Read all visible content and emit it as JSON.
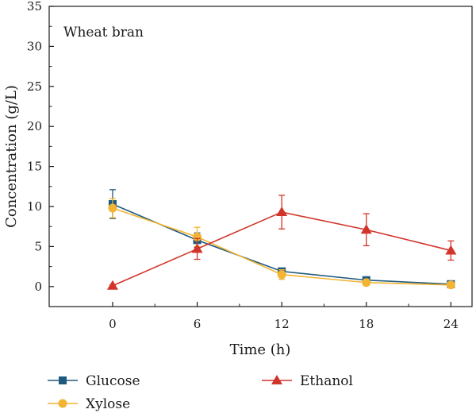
{
  "chart_data": {
    "type": "line",
    "annotation": "Wheat bran",
    "xlabel": "Time (h)",
    "ylabel": "Concentration (g/L)",
    "x": [
      0,
      6,
      12,
      18,
      24
    ],
    "xticks": [
      0,
      6,
      12,
      18,
      24
    ],
    "yticks": [
      0,
      5,
      10,
      15,
      20,
      25,
      30,
      35
    ],
    "xlim": [
      -4.5,
      25.5
    ],
    "ylim": [
      -2.5,
      35
    ],
    "grid": false,
    "legend_position": "bottom",
    "series": [
      {
        "name": "Glucose",
        "marker": "square",
        "color": "#1f5a7e",
        "values": [
          10.3,
          5.8,
          1.9,
          0.8,
          0.3
        ],
        "errors": [
          1.8,
          0.9,
          0.4,
          0.3,
          0.2
        ]
      },
      {
        "name": "Xylose",
        "marker": "circle",
        "color": "#f2b431",
        "values": [
          9.8,
          6.2,
          1.5,
          0.5,
          0.2
        ],
        "errors": [
          1.2,
          1.2,
          0.6,
          0.2,
          0.1
        ]
      },
      {
        "name": "Ethanol",
        "marker": "triangle",
        "color": "#d2342a",
        "values": [
          0.1,
          4.7,
          9.3,
          7.1,
          4.5
        ],
        "errors": [
          0.1,
          1.3,
          2.1,
          2.0,
          1.2
        ]
      }
    ]
  }
}
